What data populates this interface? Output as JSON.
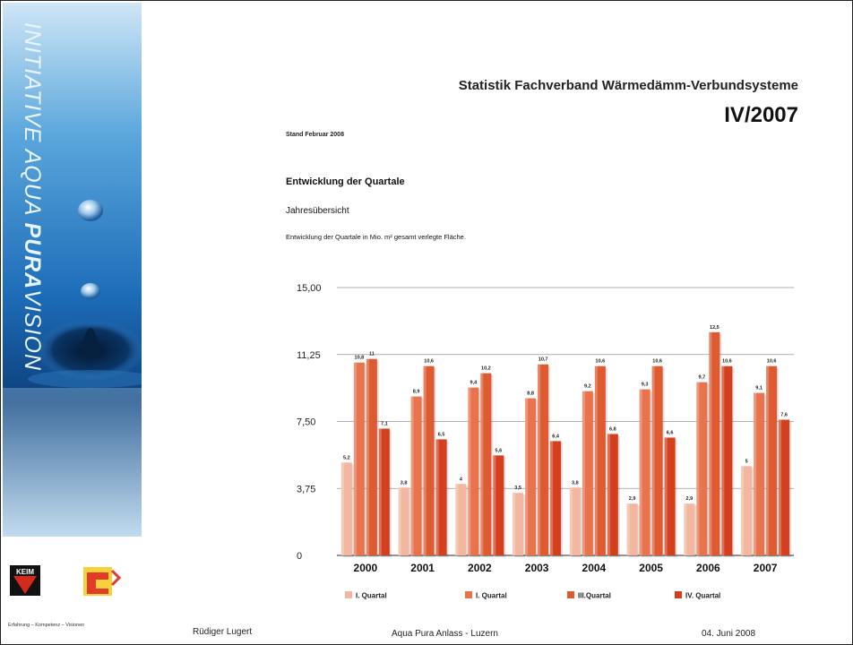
{
  "sidebar": {
    "text_part1": "INITIATIVE AQUA ",
    "text_part2": "PURA",
    "text_part3": "VISION",
    "logo_text": "KEIM",
    "tagline": "Erfahrung – Kompetenz – Visionen"
  },
  "header": {
    "title": "Statistik Fachverband Wärmedämm-Verbundsysteme",
    "period": "IV/2007",
    "stand": "Stand Februar 2008"
  },
  "section": {
    "heading": "Entwicklung der Quartale",
    "subheading": "Jahresübersicht",
    "description": "Entwicklung der Quartale in Mio. m² gesamt verlegte Fläche."
  },
  "footer": {
    "left": "Rüdiger Lugert",
    "center": "Aqua Pura Anlass - Luzern",
    "right": "04. Juni 2008"
  },
  "colors": {
    "q1": "#f2b79e",
    "q2": "#e8734c",
    "q3": "#de5a30",
    "q4": "#d4401e",
    "grid": "#999999"
  },
  "chart_data": {
    "type": "bar",
    "categories": [
      "2000",
      "2001",
      "2002",
      "2003",
      "2004",
      "2005",
      "2006",
      "2007"
    ],
    "series": [
      {
        "name": "I. Quartal",
        "values": [
          5.2,
          3.8,
          4.0,
          3.5,
          3.8,
          2.9,
          2.9,
          5.0
        ]
      },
      {
        "name": "I. Quartal",
        "values": [
          10.8,
          8.9,
          9.4,
          8.8,
          9.2,
          9.3,
          9.7,
          9.1
        ]
      },
      {
        "name": "III.Quartal",
        "values": [
          11.0,
          10.6,
          10.2,
          10.7,
          10.6,
          10.6,
          12.5,
          10.6
        ]
      },
      {
        "name": "IV. Quartal",
        "values": [
          7.1,
          6.5,
          5.6,
          6.4,
          6.8,
          6.6,
          10.6,
          7.6
        ]
      }
    ],
    "yticks": [
      "0",
      "3,75",
      "7,50",
      "11,25",
      "15,00"
    ],
    "ylim": [
      0,
      15
    ],
    "grid": true,
    "legend": "bottom"
  }
}
